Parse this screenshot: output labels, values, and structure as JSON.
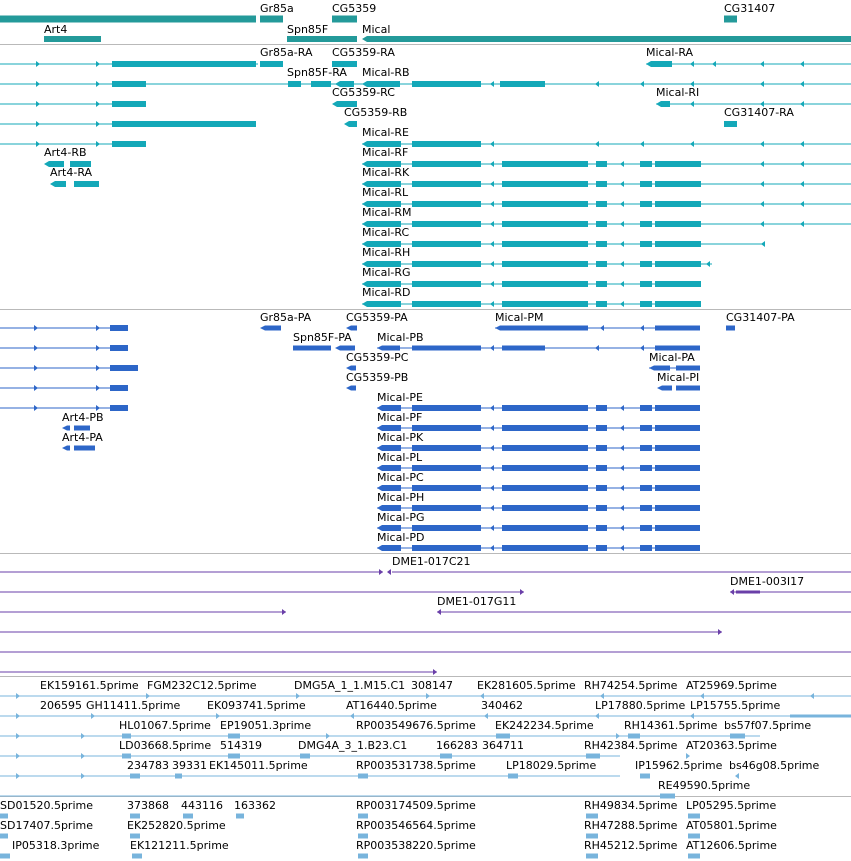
{
  "colors": {
    "gene": "#249a9a",
    "rna": "#14a8b8",
    "protein": "#2d66c8",
    "clone": "#6a3fa8",
    "est": "#78b4dc",
    "divider": "#b9b9b9"
  },
  "tracks": {
    "genes": {
      "labels": [
        "Gr85a",
        "CG5359",
        "CG31407",
        "Art4",
        "Spn85F",
        "Mical"
      ]
    },
    "transcripts": {
      "labels": [
        "Gr85a-RA",
        "CG5359-RA",
        "Mical-RA",
        "Spn85F-RA",
        "Mical-RB",
        "CG5359-RC",
        "Mical-RI",
        "CG5359-RB",
        "CG31407-RA",
        "Mical-RE",
        "Art4-RB",
        "Mical-RF",
        "Art4-RA",
        "Mical-RK",
        "Mical-RL",
        "Mical-RM",
        "Mical-RC",
        "Mical-RH",
        "Mical-RG",
        "Mical-RD"
      ]
    },
    "proteins": {
      "labels": [
        "Gr85a-PA",
        "CG5359-PA",
        "Mical-PM",
        "CG31407-PA",
        "Spn85F-PA",
        "Mical-PB",
        "CG5359-PC",
        "Mical-PA",
        "CG5359-PB",
        "Mical-PI",
        "Mical-PE",
        "Art4-PB",
        "Mical-PF",
        "Art4-PA",
        "Mical-PK",
        "Mical-PL",
        "Mical-PC",
        "Mical-PH",
        "Mical-PG",
        "Mical-PD"
      ]
    },
    "clones": {
      "labels": [
        "DME1-017C21",
        "DME1-003I17",
        "DME1-017G11"
      ]
    },
    "ests_a": {
      "labels": [
        "EK159161.5prime",
        "FGM232C12.5prime",
        "DMG5A_1_1.M15.C1",
        "308147",
        "EK281605.5prime",
        "RH74254.5prime",
        "AT25969.5prime",
        "206595",
        "GH11411.5prime",
        "EK093741.5prime",
        "AT16440.5prime",
        "340462",
        "LP17880.5prime",
        "LP15755.5prime",
        "HL01067.5prime",
        "EP19051.3prime",
        "RP003549676.5prime",
        "EK242234.5prime",
        "RH14361.5prime",
        "bs57f07.5prime",
        "LD03668.5prime",
        "514319",
        "DMG4A_3_1.B23.C1",
        "166283",
        "364711",
        "RH42384.5prime",
        "AT20363.5prime",
        "234783",
        "39331",
        "EK145011.5prime",
        "RP003531738.5prime",
        "LP18029.5prime",
        "IP15962.5prime",
        "bs46g08.5prime",
        "RE49590.5prime"
      ]
    },
    "ests_b": {
      "labels": [
        "SD01520.5prime",
        "373868",
        "443116",
        "163362",
        "RP003174509.5prime",
        "RH49834.5prime",
        "LP05295.5prime",
        "SD17407.5prime",
        "EK252820.5prime",
        "RP003546564.5prime",
        "RH47288.5prime",
        "AT05801.5prime",
        "IP05318.3prime",
        "EK121211.5prime",
        "RP003538220.5prime",
        "RH45212.5prime",
        "AT12606.5prime"
      ]
    }
  }
}
